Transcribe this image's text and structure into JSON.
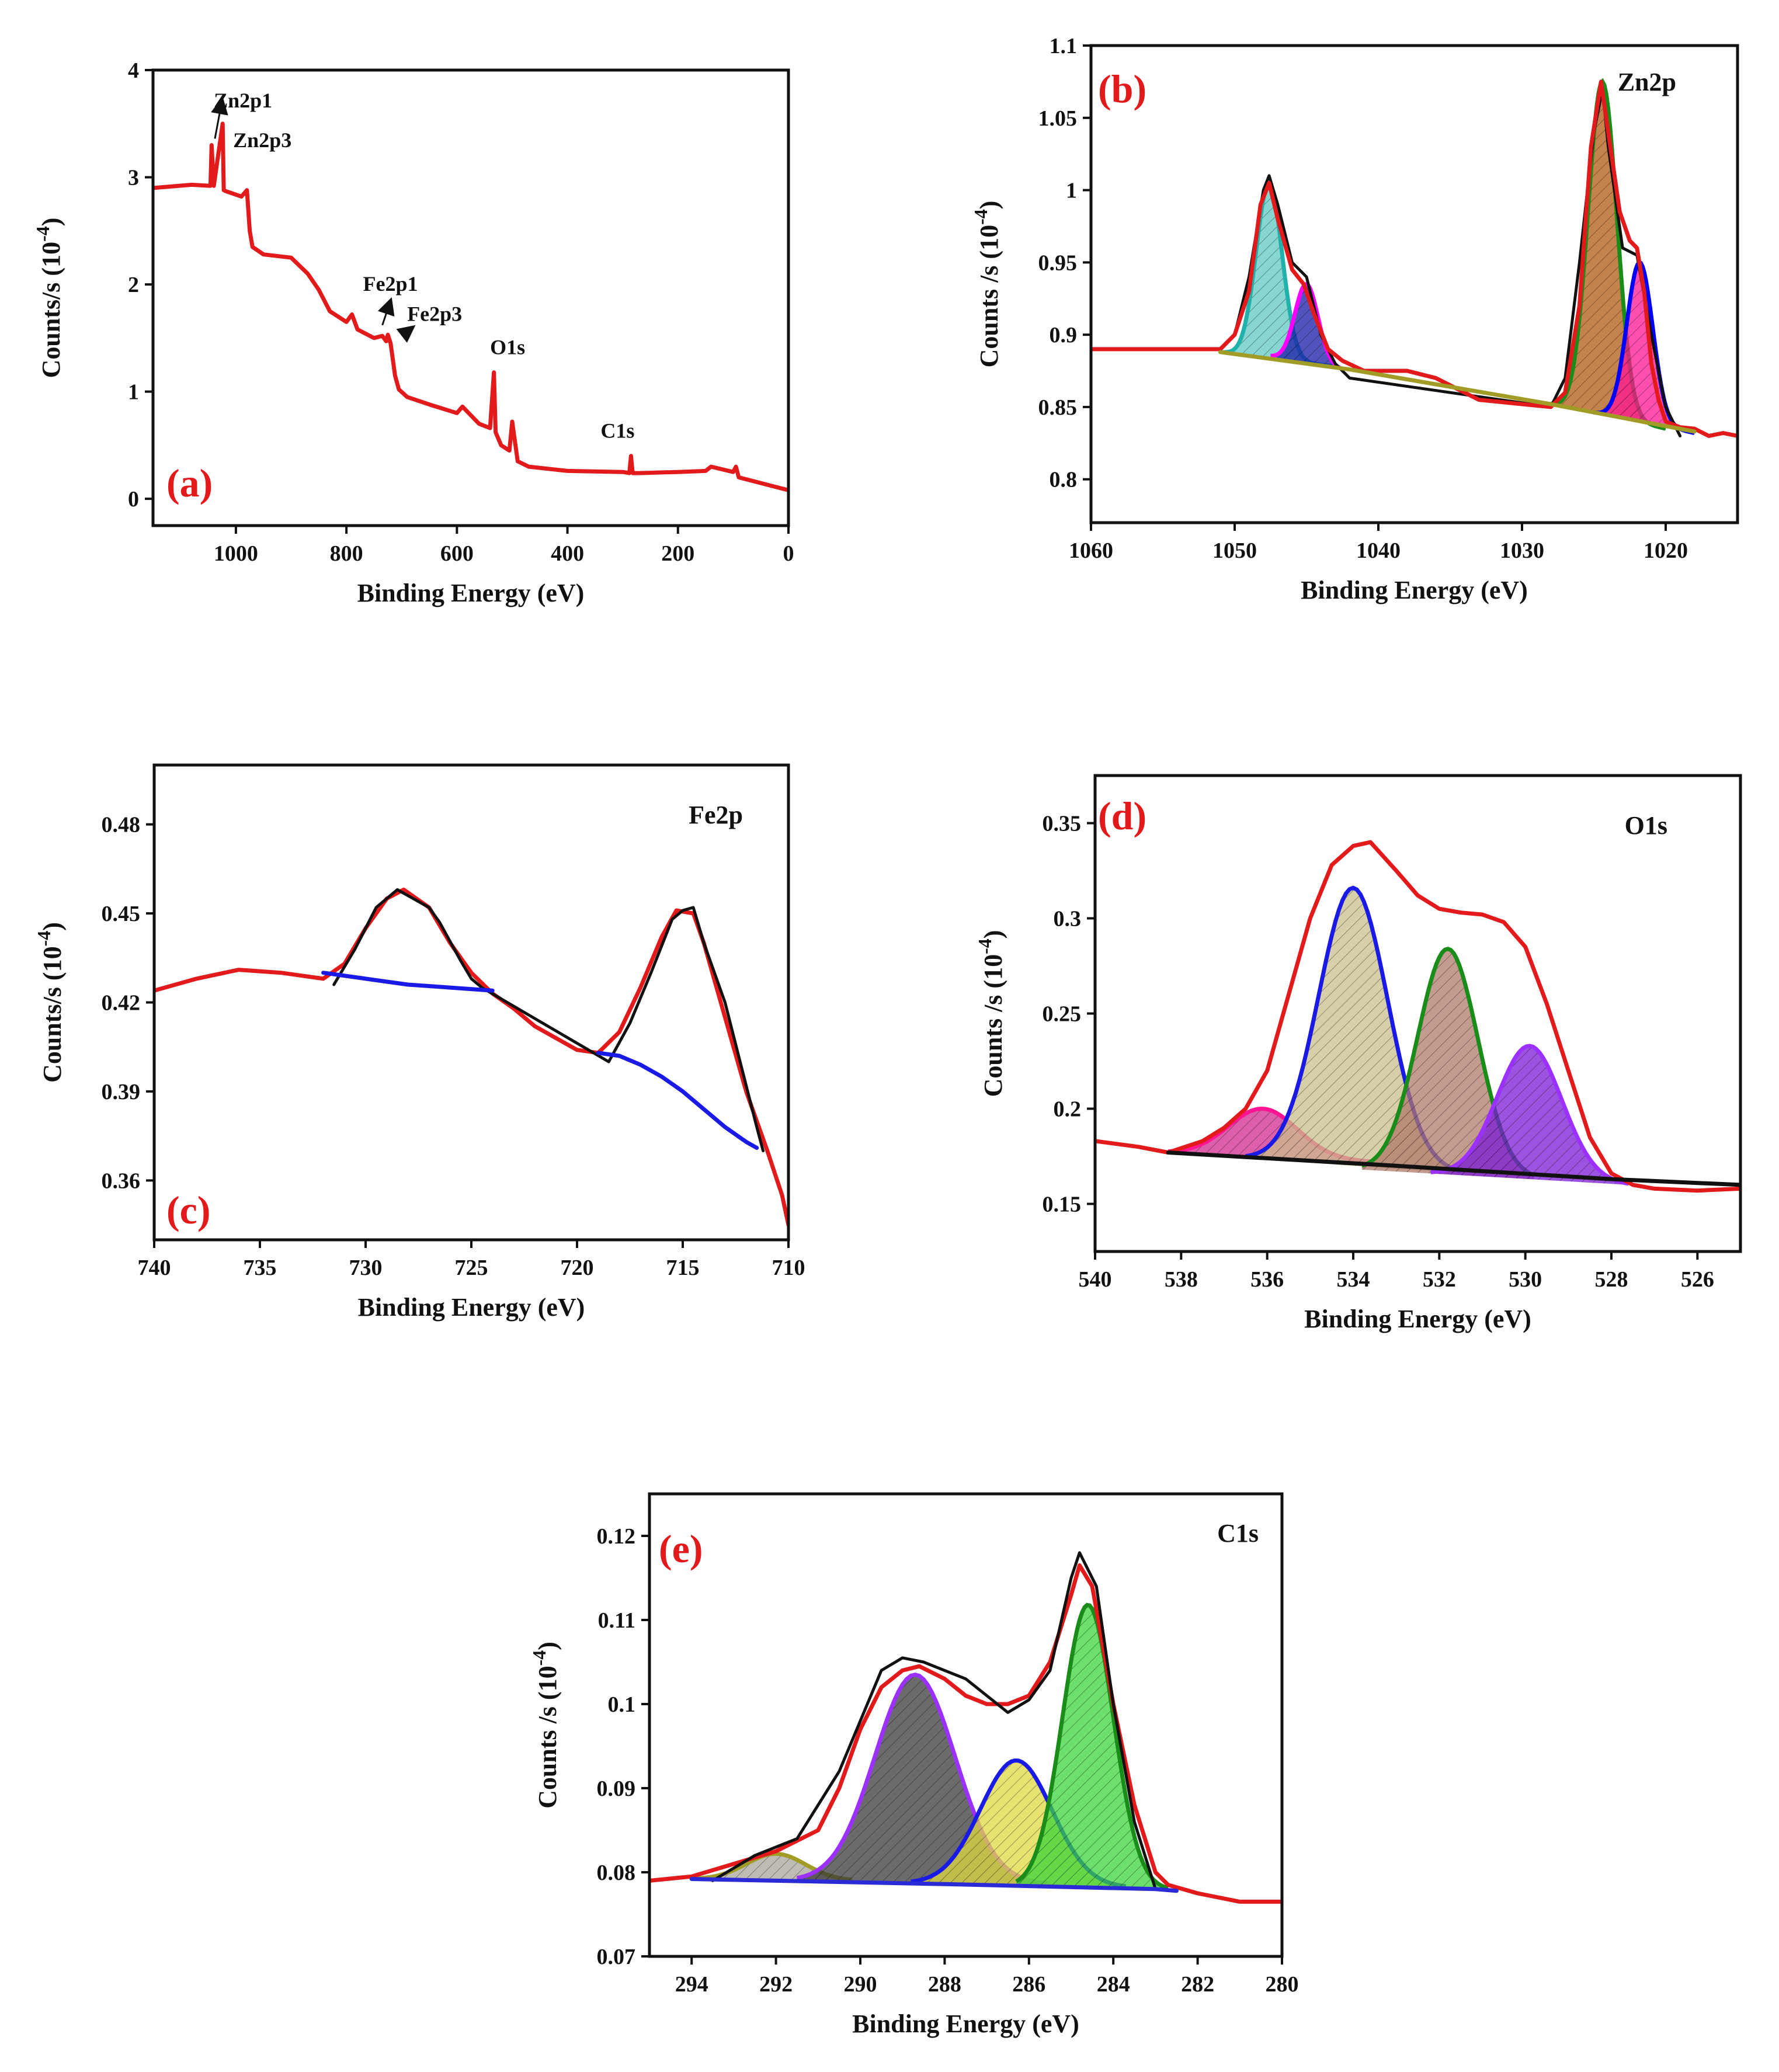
{
  "chart_data": [
    {
      "id": "a",
      "type": "line",
      "panel_label": "(a)",
      "title": "",
      "xlabel": "Binding Energy (eV)",
      "ylabel": "Counts/s (10",
      "ylabel_exp": "-4",
      "ylabel_close": ")",
      "xlim": [
        1150,
        0
      ],
      "ylim": [
        -0.25,
        4
      ],
      "xticks": [
        1000,
        800,
        600,
        400,
        200,
        0
      ],
      "yticks": [
        0,
        1,
        2,
        3,
        4
      ],
      "annotations": [
        "Zn2p1",
        "Zn2p3",
        "Fe2p1",
        "Fe2p3",
        "O1s",
        "C1s"
      ],
      "series": [
        {
          "name": "survey",
          "color": "#e31a1c",
          "x": [
            1150,
            1080,
            1046,
            1044,
            1040,
            1024,
            1022,
            1018,
            990,
            980,
            975,
            970,
            950,
            900,
            870,
            850,
            830,
            800,
            790,
            780,
            750,
            735,
            728,
            725,
            720,
            712,
            705,
            690,
            650,
            600,
            590,
            560,
            540,
            533,
            530,
            520,
            505,
            500,
            490,
            470,
            400,
            300,
            288,
            285,
            282,
            270,
            200,
            150,
            140,
            100,
            95,
            90,
            60,
            30,
            0
          ],
          "y": [
            2.9,
            2.93,
            2.92,
            3.3,
            2.92,
            3.5,
            2.88,
            2.87,
            2.82,
            2.88,
            2.5,
            2.35,
            2.28,
            2.25,
            2.1,
            1.95,
            1.75,
            1.65,
            1.72,
            1.58,
            1.5,
            1.52,
            1.47,
            1.53,
            1.45,
            1.15,
            1.02,
            0.95,
            0.88,
            0.8,
            0.86,
            0.7,
            0.66,
            1.18,
            0.62,
            0.5,
            0.45,
            0.72,
            0.35,
            0.3,
            0.26,
            0.25,
            0.24,
            0.4,
            0.24,
            0.24,
            0.25,
            0.26,
            0.3,
            0.25,
            0.3,
            0.2,
            0.16,
            0.12,
            0.08
          ]
        }
      ]
    },
    {
      "id": "b",
      "type": "line",
      "panel_label": "(b)",
      "title": "Zn2p",
      "xlabel": "Binding Energy (eV)",
      "ylabel": "Counts /s (10",
      "ylabel_exp": "-4",
      "ylabel_close": ")",
      "xlim": [
        1060,
        1015
      ],
      "ylim": [
        0.77,
        1.1
      ],
      "xticks": [
        1060,
        1050,
        1040,
        1030,
        1020
      ],
      "yticks": [
        0.8,
        0.85,
        0.9,
        0.95,
        1.0,
        1.05,
        1.1
      ],
      "ytick_labels": [
        "0.8",
        "0.85",
        "0.9",
        "0.95",
        "1",
        "1.05",
        "1.1"
      ],
      "series": [
        {
          "name": "raw",
          "color": "#111111",
          "x": [
            1050,
            1049,
            1048,
            1047.6,
            1047,
            1046,
            1045,
            1044,
            1043,
            1042,
            1028,
            1027,
            1026,
            1025,
            1024.4,
            1024,
            1023,
            1022,
            1021,
            1020,
            1019
          ],
          "y": [
            0.9,
            0.94,
            1.0,
            1.01,
            0.99,
            0.95,
            0.94,
            0.9,
            0.88,
            0.87,
            0.85,
            0.87,
            0.95,
            1.04,
            1.07,
            1.03,
            0.96,
            0.955,
            0.9,
            0.85,
            0.83
          ]
        },
        {
          "name": "envelope",
          "color": "#e31a1c",
          "x": [
            1060,
            1055,
            1051,
            1050,
            1049,
            1048.2,
            1047.6,
            1047,
            1046,
            1045.2,
            1044.5,
            1043.5,
            1042.5,
            1041,
            1038,
            1036,
            1033,
            1030,
            1028,
            1027,
            1026,
            1025.2,
            1024.5,
            1024,
            1023.2,
            1022.5,
            1022,
            1021.5,
            1021,
            1020.5,
            1020,
            1019,
            1018,
            1017,
            1016,
            1015
          ],
          "y": [
            0.89,
            0.89,
            0.89,
            0.9,
            0.93,
            0.99,
            1.005,
            0.98,
            0.945,
            0.935,
            0.915,
            0.89,
            0.882,
            0.875,
            0.875,
            0.87,
            0.855,
            0.852,
            0.85,
            0.86,
            0.92,
            1.03,
            1.075,
            1.04,
            0.985,
            0.965,
            0.96,
            0.93,
            0.88,
            0.855,
            0.84,
            0.836,
            0.835,
            0.83,
            0.832,
            0.83
          ]
        },
        {
          "name": "baseline",
          "color": "#a09c26",
          "fill": "none",
          "x": [
            1051,
            1042,
            1028,
            1018
          ],
          "y": [
            0.888,
            0.876,
            0.852,
            0.833
          ]
        },
        {
          "name": "Zn2p1-main",
          "color": "#20b2aa",
          "fill": "#5fc8c2",
          "center": 1047.6,
          "height": 1.005,
          "sigma": 0.9,
          "base_left": 0.888,
          "base_right": 0.878,
          "from": 1051,
          "to": 1043
        },
        {
          "name": "Zn2p1-sat",
          "color": "#ff00ff",
          "fill": "#1a1aa8",
          "center": 1045,
          "height": 0.935,
          "sigma": 0.8,
          "base_left": 0.885,
          "base_right": 0.876,
          "from": 1047.5,
          "to": 1042.5
        },
        {
          "name": "Zn2p3-main",
          "color": "#1a8c1a",
          "fill": "#b05a10",
          "center": 1024.4,
          "height": 1.075,
          "sigma": 1.0,
          "base_left": 0.852,
          "base_right": 0.835,
          "from": 1028,
          "to": 1020
        },
        {
          "name": "Zn2p3-sat",
          "color": "#0000ff",
          "fill": "#ff1493",
          "center": 1021.8,
          "height": 0.95,
          "sigma": 0.9,
          "base_left": 0.846,
          "base_right": 0.832,
          "from": 1025,
          "to": 1018
        }
      ]
    },
    {
      "id": "c",
      "type": "line",
      "panel_label": "(c)",
      "title": "Fe2p",
      "xlabel": "Binding Energy (eV)",
      "ylabel": "Counts/s (10",
      "ylabel_exp": "-4",
      "ylabel_close": ")",
      "xlim": [
        740,
        710
      ],
      "ylim": [
        0.34,
        0.5
      ],
      "xticks": [
        740,
        735,
        730,
        725,
        720,
        715,
        710
      ],
      "yticks": [
        0.36,
        0.39,
        0.42,
        0.45,
        0.48
      ],
      "ytick_labels": [
        "0.36",
        "0.39",
        "0.42",
        "0.45",
        "0.48"
      ],
      "series": [
        {
          "name": "envelope",
          "color": "#e31a1c",
          "x": [
            740,
            738,
            736,
            734,
            732,
            731,
            730,
            729,
            728.2,
            727,
            726,
            725,
            724,
            723,
            722,
            721,
            720,
            719,
            718,
            717,
            716,
            715.3,
            714.5,
            714,
            713,
            712,
            711,
            710.3,
            710
          ],
          "y": [
            0.424,
            0.428,
            0.431,
            0.43,
            0.428,
            0.433,
            0.445,
            0.455,
            0.458,
            0.452,
            0.44,
            0.43,
            0.423,
            0.418,
            0.412,
            0.408,
            0.404,
            0.403,
            0.41,
            0.425,
            0.442,
            0.451,
            0.45,
            0.44,
            0.415,
            0.39,
            0.37,
            0.355,
            0.345
          ]
        },
        {
          "name": "raw",
          "color": "#111111",
          "x": [
            731.5,
            730.5,
            729.5,
            728.5,
            728,
            727,
            726.5,
            725.5,
            725,
            724.5,
            718.5,
            717.5,
            716.5,
            715.5,
            715,
            714.5,
            714,
            713,
            712,
            711.5,
            711.2
          ],
          "y": [
            0.426,
            0.438,
            0.452,
            0.458,
            0.456,
            0.452,
            0.447,
            0.434,
            0.428,
            0.425,
            0.4,
            0.413,
            0.43,
            0.448,
            0.451,
            0.452,
            0.44,
            0.42,
            0.392,
            0.378,
            0.37
          ]
        },
        {
          "name": "baseline-1",
          "color": "#1a1ae6",
          "x": [
            732,
            730,
            728,
            726,
            724
          ],
          "y": [
            0.43,
            0.428,
            0.426,
            0.425,
            0.424
          ]
        },
        {
          "name": "baseline-2",
          "color": "#1a1ae6",
          "x": [
            719,
            718,
            717,
            716,
            715,
            714,
            713,
            712,
            711.5
          ],
          "y": [
            0.403,
            0.402,
            0.399,
            0.395,
            0.39,
            0.384,
            0.378,
            0.373,
            0.371
          ]
        }
      ]
    },
    {
      "id": "d",
      "type": "line",
      "panel_label": "(d)",
      "title": "O1s",
      "xlabel": "Binding Energy (eV)",
      "ylabel": "Counts /s (10",
      "ylabel_exp": "-4",
      "ylabel_close": ")",
      "xlim": [
        540,
        525
      ],
      "ylim": [
        0.125,
        0.375
      ],
      "xticks": [
        540,
        538,
        536,
        534,
        532,
        530,
        528,
        526
      ],
      "yticks": [
        0.15,
        0.2,
        0.25,
        0.3,
        0.35
      ],
      "ytick_labels": [
        "0.15",
        "0.2",
        "0.25",
        "0.3",
        "0.35"
      ],
      "series": [
        {
          "name": "envelope",
          "color": "#e31a1c",
          "x": [
            540,
            539,
            538.3,
            537.5,
            537,
            536.5,
            536,
            535.5,
            535,
            534.5,
            534,
            533.6,
            533,
            532.5,
            532,
            531.5,
            531,
            530.5,
            530,
            529.5,
            529,
            528.5,
            528,
            527.5,
            527,
            526,
            525
          ],
          "y": [
            0.183,
            0.18,
            0.177,
            0.183,
            0.19,
            0.2,
            0.22,
            0.26,
            0.3,
            0.328,
            0.338,
            0.34,
            0.325,
            0.312,
            0.305,
            0.303,
            0.302,
            0.298,
            0.285,
            0.255,
            0.22,
            0.185,
            0.166,
            0.16,
            0.158,
            0.157,
            0.158
          ]
        },
        {
          "name": "baseline",
          "color": "#111111",
          "x": [
            538.3,
            533,
            528,
            525
          ],
          "y": [
            0.177,
            0.17,
            0.163,
            0.16
          ]
        },
        {
          "name": "peak-536",
          "color": "#ff1493",
          "fill": "#d12a8f",
          "center": 536.1,
          "height": 0.2,
          "sigma": 0.8,
          "base_left": 0.177,
          "base_right": 0.172,
          "from": 538.3,
          "to": 533.5
        },
        {
          "name": "peak-534",
          "color": "#1a1ae6",
          "fill": "#c9bf8a",
          "center": 534,
          "height": 0.316,
          "sigma": 0.8,
          "base_left": 0.174,
          "base_right": 0.166,
          "from": 536.5,
          "to": 531.5
        },
        {
          "name": "peak-531.8",
          "color": "#1a8c1a",
          "fill": "#b07a6a",
          "center": 531.8,
          "height": 0.284,
          "sigma": 0.7,
          "base_left": 0.168,
          "base_right": 0.163,
          "from": 533.8,
          "to": 529.8
        },
        {
          "name": "peak-529.9",
          "color": "#9b30ff",
          "fill": "#7b1ad6",
          "center": 529.9,
          "height": 0.233,
          "sigma": 0.75,
          "base_left": 0.166,
          "base_right": 0.16,
          "from": 532.2,
          "to": 527.6
        }
      ]
    },
    {
      "id": "e",
      "type": "line",
      "panel_label": "(e)",
      "title": "C1s",
      "xlabel": "Binding Energy (eV)",
      "ylabel": "Counts /s (10",
      "ylabel_exp": "-4",
      "ylabel_close": ")",
      "xlim": [
        295,
        280
      ],
      "ylim": [
        0.07,
        0.125
      ],
      "xticks": [
        294,
        292,
        290,
        288,
        286,
        284,
        282,
        280
      ],
      "yticks": [
        0.07,
        0.08,
        0.09,
        0.1,
        0.11,
        0.12
      ],
      "ytick_labels": [
        "0.07",
        "0.08",
        "0.09",
        "0.1",
        "0.11",
        "0.12"
      ],
      "series": [
        {
          "name": "envelope",
          "color": "#e31a1c",
          "x": [
            295,
            294,
            293,
            292,
            291,
            290.5,
            290,
            289.5,
            289,
            288.6,
            288,
            287.5,
            287,
            286.5,
            286,
            285.5,
            285,
            284.8,
            284.5,
            284,
            283.5,
            283,
            282.7,
            282,
            281,
            280
          ],
          "y": [
            0.079,
            0.0795,
            0.081,
            0.0825,
            0.085,
            0.09,
            0.097,
            0.102,
            0.104,
            0.1045,
            0.103,
            0.101,
            0.1,
            0.1,
            0.101,
            0.105,
            0.113,
            0.1165,
            0.114,
            0.1,
            0.088,
            0.08,
            0.0785,
            0.0775,
            0.0765,
            0.0765
          ]
        },
        {
          "name": "raw",
          "color": "#111111",
          "x": [
            293.5,
            292.5,
            291.5,
            290.5,
            289.5,
            289,
            288.5,
            288,
            287.5,
            287,
            286.5,
            286,
            285.5,
            285,
            284.8,
            284.4,
            284,
            283.5,
            283
          ],
          "y": [
            0.079,
            0.082,
            0.084,
            0.092,
            0.104,
            0.1055,
            0.105,
            0.104,
            0.103,
            0.101,
            0.099,
            0.1005,
            0.104,
            0.115,
            0.118,
            0.114,
            0.1,
            0.086,
            0.078
          ]
        },
        {
          "name": "baseline",
          "color": "#2a2ad6",
          "x": [
            294,
            288,
            283,
            282.5
          ],
          "y": [
            0.0792,
            0.0786,
            0.078,
            0.0778
          ]
        },
        {
          "name": "peak-292",
          "color": "#a09c26",
          "fill": "#a8a69a",
          "center": 292,
          "height": 0.0822,
          "sigma": 0.7,
          "base_left": 0.0792,
          "base_right": 0.079,
          "from": 294,
          "to": 290.2
        },
        {
          "name": "peak-288.7",
          "color": "#9b30ff",
          "fill": "#3a3a3a",
          "center": 288.7,
          "height": 0.1035,
          "sigma": 0.95,
          "base_left": 0.079,
          "base_right": 0.0786,
          "from": 291.5,
          "to": 285.5
        },
        {
          "name": "peak-286.3",
          "color": "#1a1ae6",
          "fill": "#e0d840",
          "center": 286.3,
          "height": 0.0933,
          "sigma": 0.85,
          "base_left": 0.0787,
          "base_right": 0.0782,
          "from": 288.8,
          "to": 283.7
        },
        {
          "name": "peak-284.6",
          "color": "#1a8c1a",
          "fill": "#3bd43b",
          "center": 284.6,
          "height": 0.1118,
          "sigma": 0.6,
          "base_left": 0.0783,
          "base_right": 0.0779,
          "from": 286.3,
          "to": 282.7
        }
      ]
    }
  ]
}
